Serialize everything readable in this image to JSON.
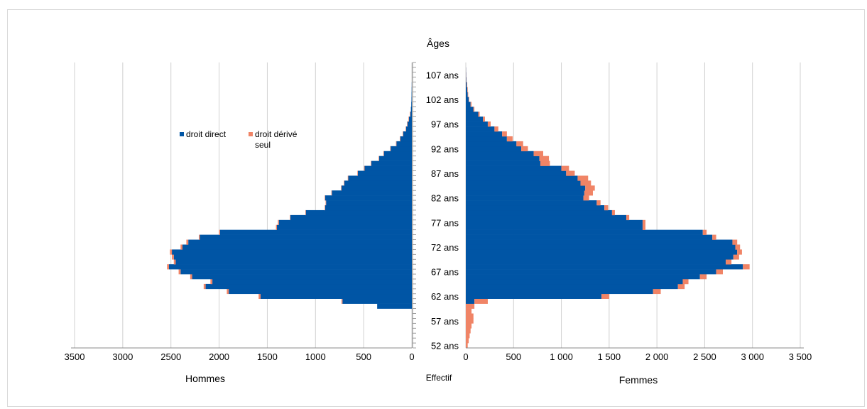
{
  "chart_data": {
    "type": "bar",
    "orientation": "horizontal",
    "title": "Âges",
    "center_label": "Effectif",
    "left_panel_label": "Hommes",
    "right_panel_label": "Femmes",
    "colors": {
      "direct": "#0055A5",
      "derive": "#F08466"
    },
    "legend": {
      "placement": "top-left",
      "entries": [
        "droit direct",
        "droit dérivé seul"
      ]
    },
    "left_xlim": [
      0,
      3500
    ],
    "right_xlim": [
      0,
      3500
    ],
    "left_ticks": [
      "3500",
      "3000",
      "2500",
      "2000",
      "1500",
      "1000",
      "500",
      "0"
    ],
    "right_ticks": [
      "0",
      "500",
      "1 000",
      "1 500",
      "2 000",
      "2 500",
      "3 000",
      "3 500"
    ],
    "age_ticks": [
      "52 ans",
      "57 ans",
      "62 ans",
      "67 ans",
      "72 ans",
      "77 ans",
      "82 ans",
      "87 ans",
      "92 ans",
      "97 ans",
      "102 ans",
      "107 ans"
    ],
    "ages": [
      52,
      53,
      54,
      55,
      56,
      57,
      58,
      59,
      60,
      61,
      62,
      63,
      64,
      65,
      66,
      67,
      68,
      69,
      70,
      71,
      72,
      73,
      74,
      75,
      76,
      77,
      78,
      79,
      80,
      81,
      82,
      83,
      84,
      85,
      86,
      87,
      88,
      89,
      90,
      91,
      92,
      93,
      94,
      95,
      96,
      97,
      98,
      99,
      100,
      101,
      102,
      103,
      104,
      105,
      106,
      107,
      108,
      109
    ],
    "hommes_direct": [
      0,
      0,
      0,
      0,
      0,
      0,
      0,
      0,
      360,
      720,
      1570,
      1900,
      2140,
      2070,
      2280,
      2400,
      2520,
      2450,
      2470,
      2490,
      2380,
      2320,
      2200,
      1990,
      1400,
      1380,
      1260,
      1100,
      900,
      890,
      900,
      830,
      730,
      700,
      660,
      560,
      490,
      420,
      340,
      290,
      220,
      160,
      120,
      90,
      60,
      45,
      30,
      15,
      10,
      6,
      4,
      3,
      2,
      1,
      0,
      0,
      0,
      0
    ],
    "hommes_derive": [
      0,
      0,
      0,
      0,
      0,
      0,
      0,
      0,
      0,
      10,
      20,
      20,
      20,
      20,
      20,
      20,
      20,
      20,
      20,
      20,
      20,
      20,
      10,
      10,
      10,
      10,
      5,
      5,
      5,
      5,
      5,
      5,
      5,
      5,
      5,
      5,
      5,
      5,
      5,
      5,
      5,
      5,
      5,
      5,
      5,
      5,
      5,
      5,
      0,
      0,
      0,
      0,
      0,
      0,
      0,
      0,
      0,
      0
    ],
    "femmes_direct": [
      0,
      0,
      0,
      0,
      0,
      0,
      0,
      0,
      0,
      90,
      1420,
      1960,
      2220,
      2270,
      2450,
      2620,
      2900,
      2720,
      2800,
      2840,
      2820,
      2790,
      2580,
      2480,
      1850,
      1850,
      1680,
      1530,
      1450,
      1370,
      1230,
      1240,
      1250,
      1200,
      1170,
      1050,
      1000,
      780,
      770,
      710,
      580,
      530,
      430,
      380,
      300,
      230,
      180,
      130,
      80,
      50,
      30,
      20,
      15,
      10,
      5,
      3,
      2,
      0
    ],
    "femmes_derive": [
      20,
      30,
      40,
      50,
      60,
      80,
      80,
      60,
      90,
      140,
      80,
      80,
      70,
      60,
      70,
      70,
      70,
      60,
      60,
      50,
      50,
      50,
      40,
      40,
      30,
      30,
      30,
      30,
      40,
      40,
      60,
      90,
      100,
      110,
      110,
      90,
      80,
      100,
      100,
      100,
      70,
      70,
      60,
      50,
      40,
      30,
      20,
      15,
      10,
      10,
      5,
      5,
      5,
      5,
      3,
      2,
      1,
      0
    ]
  }
}
